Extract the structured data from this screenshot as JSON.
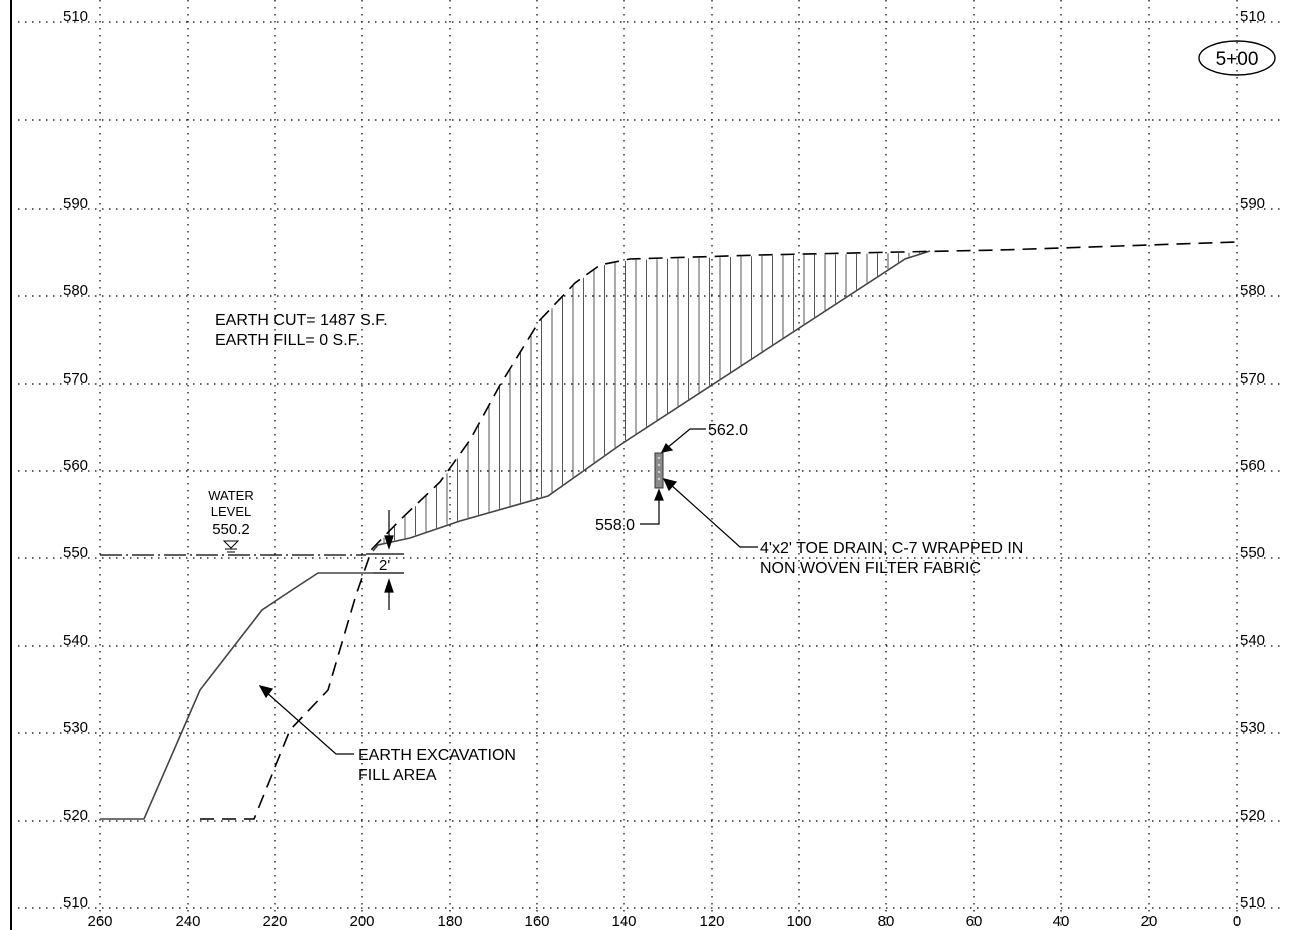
{
  "station": "5+00",
  "axes": {
    "left_elevation_labels": [
      "510",
      "590",
      "580",
      "570",
      "560",
      "550",
      "540",
      "530",
      "520",
      "510"
    ],
    "right_elevation_labels": [
      "510",
      "590",
      "580",
      "570",
      "560",
      "550",
      "540",
      "530",
      "520",
      "510"
    ],
    "offset_labels": [
      "260",
      "240",
      "220",
      "200",
      "180",
      "160",
      "140",
      "120",
      "100",
      "80",
      "60",
      "40",
      "20",
      "0"
    ]
  },
  "quantities": {
    "cut": "EARTH CUT= 1487 S.F.",
    "fill": "EARTH FILL= 0 S.F."
  },
  "water_level": {
    "line1": "WATER",
    "line2": "LEVEL",
    "value": "550.2"
  },
  "dimension": "2'",
  "toe_drain": {
    "top_elev": "562.0",
    "bottom_elev": "558.0",
    "line1": "4'x2' TOE DRAIN, C-7 WRAPPED IN",
    "line2": "NON WOVEN FILTER FABRIC"
  },
  "excavation_note": {
    "line1": "EARTH EXCAVATION",
    "line2": "FILL AREA"
  },
  "colors": {
    "line": "#000000",
    "grid": "#000000",
    "drain": "#7a7a7a"
  }
}
